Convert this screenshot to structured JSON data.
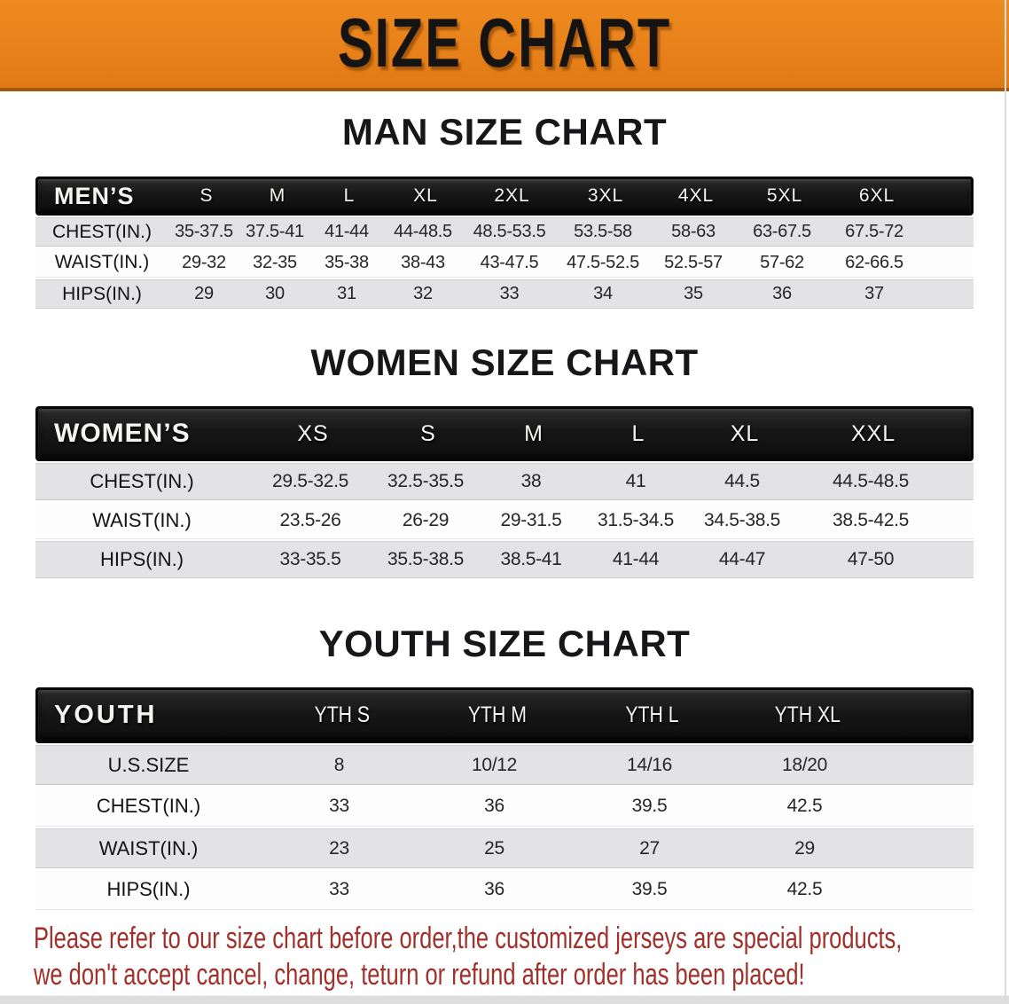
{
  "banner": {
    "title": "SIZE CHART",
    "bg_color": "#e8811a",
    "text_color": "#161412"
  },
  "sections": [
    {
      "heading": "MAN SIZE CHART",
      "corner_label": "MEN’S",
      "columns": [
        "S",
        "M",
        "L",
        "XL",
        "2XL",
        "3XL",
        "4XL",
        "5XL",
        "6XL"
      ],
      "rows": [
        {
          "label": "CHEST(IN.)",
          "values": [
            "35-37.5",
            "37.5-41",
            "41-44",
            "44-48.5",
            "48.5-53.5",
            "53.5-58",
            "58-63",
            "63-67.5",
            "67.5-72"
          ]
        },
        {
          "label": "WAIST(IN.)",
          "values": [
            "29-32",
            "32-35",
            "35-38",
            "38-43",
            "43-47.5",
            "47.5-52.5",
            "52.5-57",
            "57-62",
            "62-66.5"
          ]
        },
        {
          "label": "HIPS(IN.)",
          "values": [
            "29",
            "30",
            "31",
            "32",
            "33",
            "34",
            "35",
            "36",
            "37"
          ]
        }
      ]
    },
    {
      "heading": "WOMEN SIZE CHART",
      "corner_label": "WOMEN’S",
      "columns": [
        "XS",
        "S",
        "M",
        "L",
        "XL",
        "XXL"
      ],
      "rows": [
        {
          "label": "CHEST(IN.)",
          "values": [
            "29.5-32.5",
            "32.5-35.5",
            "38",
            "41",
            "44.5",
            "44.5-48.5"
          ]
        },
        {
          "label": "WAIST(IN.)",
          "values": [
            "23.5-26",
            "26-29",
            "29-31.5",
            "31.5-34.5",
            "34.5-38.5",
            "38.5-42.5"
          ]
        },
        {
          "label": "HIPS(IN.)",
          "values": [
            "33-35.5",
            "35.5-38.5",
            "38.5-41",
            "41-44",
            "44-47",
            "47-50"
          ]
        }
      ]
    },
    {
      "heading": "YOUTH SIZE CHART",
      "corner_label": "YOUTH",
      "columns": [
        "YTH S",
        "YTH M",
        "YTH L",
        "YTH XL"
      ],
      "rows": [
        {
          "label": "U.S.SIZE",
          "values": [
            "8",
            "10/12",
            "14/16",
            "18/20"
          ]
        },
        {
          "label": "CHEST(IN.)",
          "values": [
            "33",
            "36",
            "39.5",
            "42.5"
          ]
        },
        {
          "label": "WAIST(IN.)",
          "values": [
            "23",
            "25",
            "27",
            "29"
          ]
        },
        {
          "label": "HIPS(IN.)",
          "values": [
            "33",
            "36",
            "39.5",
            "42.5"
          ]
        }
      ]
    }
  ],
  "footer": {
    "line1": "Please refer to our size chart before order,the customized jerseys are special products,",
    "line2": "we don't accept cancel, change, teturn or refund after order has been placed!",
    "text_color": "#a1302a"
  }
}
